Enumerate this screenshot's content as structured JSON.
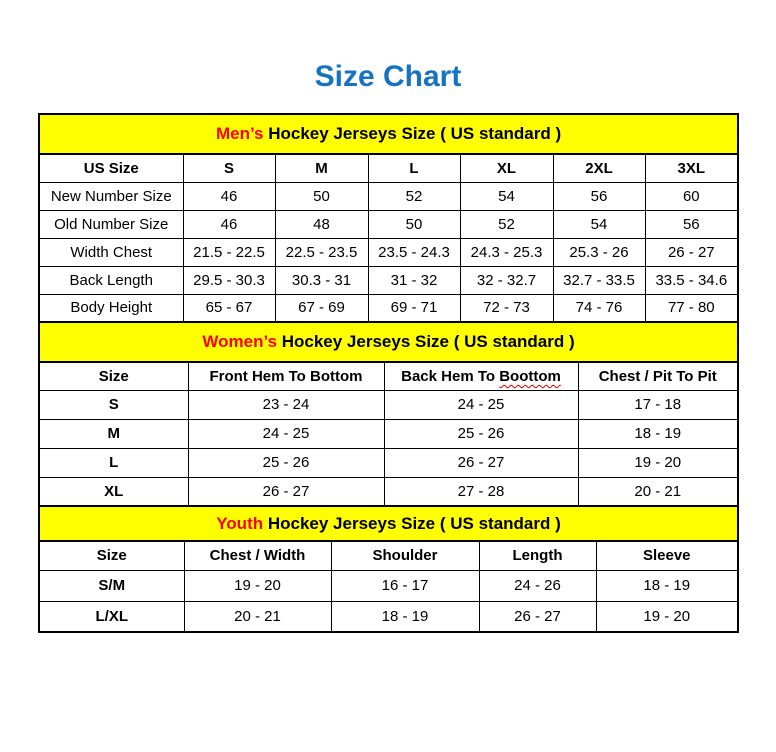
{
  "page_title": "Size Chart",
  "colors": {
    "title_blue": "#1673C4",
    "band_yellow": "#FFFF00",
    "highlight_red": "#FF0000",
    "border_black": "#000000",
    "squiggle_red": "#D40000"
  },
  "chart_data": [
    {
      "type": "table",
      "title": {
        "highlight": "Men’s",
        "rest": " Hockey Jerseys Size ( US standard )"
      },
      "columns": [
        "US Size",
        "S",
        "M",
        "L",
        "XL",
        "2XL",
        "3XL"
      ],
      "rows": [
        [
          "New Number Size",
          "46",
          "50",
          "52",
          "54",
          "56",
          "60"
        ],
        [
          "Old Number Size",
          "46",
          "48",
          "50",
          "52",
          "54",
          "56"
        ],
        [
          "Width Chest",
          "21.5 - 22.5",
          "22.5 - 23.5",
          "23.5 - 24.3",
          "24.3 - 25.3",
          "25.3 - 26",
          "26 - 27"
        ],
        [
          "Back Length",
          "29.5 - 30.3",
          "30.3 - 31",
          "31 - 32",
          "32 - 32.7",
          "32.7 - 33.5",
          "33.5 - 34.6"
        ],
        [
          "Body Height",
          "65 - 67",
          "67 - 69",
          "69 - 71",
          "72 - 73",
          "74 - 76",
          "77 - 80"
        ]
      ],
      "bold_row_labels": false
    },
    {
      "type": "table",
      "title": {
        "highlight": "Women’s",
        "rest": " Hockey Jerseys Size ( US standard )"
      },
      "columns": [
        "Size",
        "Front Hem To Bottom",
        {
          "text": "Back Hem To ",
          "misspelled": "Boottom"
        },
        "Chest / Pit To Pit"
      ],
      "rows": [
        [
          "S",
          "23 - 24",
          "24 - 25",
          "17 - 18"
        ],
        [
          "M",
          "24 - 25",
          "25 - 26",
          "18 - 19"
        ],
        [
          "L",
          "25 - 26",
          "26 - 27",
          "19 - 20"
        ],
        [
          "XL",
          "26 - 27",
          "27 - 28",
          "20 - 21"
        ]
      ],
      "bold_row_labels": true
    },
    {
      "type": "table",
      "title": {
        "highlight": "Youth",
        "rest": " Hockey Jerseys Size ( US standard )"
      },
      "columns": [
        "Size",
        "Chest / Width",
        "Shoulder",
        "Length",
        "Sleeve"
      ],
      "rows": [
        [
          "S/M",
          "19 - 20",
          "16 - 17",
          "24 - 26",
          "18 - 19"
        ],
        [
          "L/XL",
          "20 - 21",
          "18 - 19",
          "26 - 27",
          "19 - 20"
        ]
      ],
      "bold_row_labels": true
    }
  ]
}
